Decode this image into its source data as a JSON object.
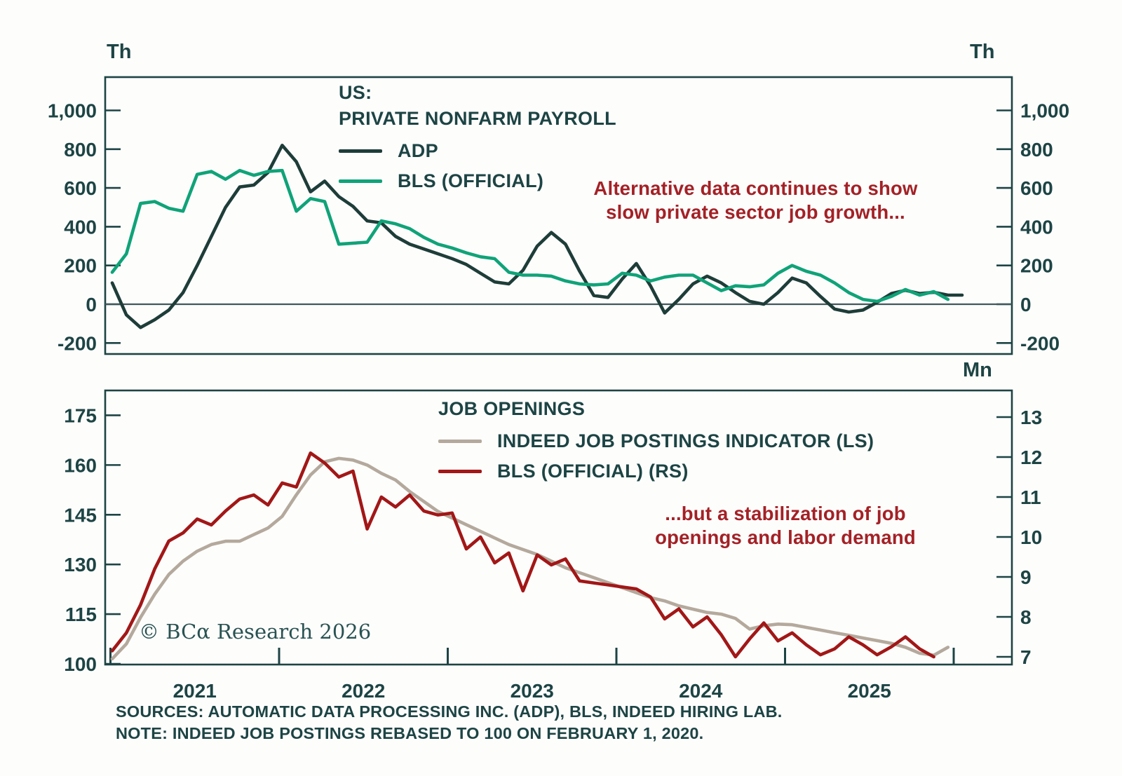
{
  "chart_data": [
    {
      "type": "line",
      "panel": "top",
      "title_lines": [
        "US:",
        "PRIVATE NONFARM PAYROLL"
      ],
      "unit_left": "Th",
      "unit_right": "Th",
      "y_tick_values": [
        1000,
        800,
        600,
        400,
        200,
        0,
        -200
      ],
      "y_tick_labels": [
        "1,000",
        "800",
        "600",
        "400",
        "200",
        "0",
        "-200"
      ],
      "zero_line": true,
      "annotation_lines": [
        "Alternative data continues to show",
        "slow private sector job growth..."
      ],
      "annotation_color": "#a32126",
      "x_range": "Jan 2021 - late 2025, monthly",
      "series": [
        {
          "name": "ADP",
          "color": "#1e3d38",
          "values": [
            110,
            -55,
            -120,
            -80,
            -30,
            60,
            200,
            350,
            500,
            605,
            615,
            680,
            820,
            735,
            580,
            635,
            555,
            505,
            430,
            420,
            350,
            310,
            285,
            260,
            235,
            205,
            160,
            115,
            105,
            175,
            300,
            370,
            310,
            170,
            45,
            35,
            130,
            210,
            95,
            -45,
            25,
            105,
            145,
            110,
            60,
            15,
            0,
            60,
            135,
            110,
            40,
            -25,
            -40,
            -30,
            10,
            55,
            72,
            55,
            62,
            47,
            47
          ]
        },
        {
          "name": "BLS (OFFICIAL)",
          "color": "#0fa378",
          "values": [
            165,
            260,
            520,
            530,
            495,
            480,
            670,
            685,
            645,
            690,
            665,
            685,
            690,
            480,
            545,
            530,
            310,
            315,
            320,
            430,
            415,
            390,
            345,
            310,
            290,
            265,
            245,
            235,
            165,
            150,
            150,
            145,
            120,
            105,
            100,
            105,
            160,
            150,
            120,
            140,
            150,
            150,
            110,
            70,
            95,
            90,
            100,
            160,
            200,
            170,
            150,
            110,
            60,
            25,
            15,
            40,
            76,
            47,
            65,
            25
          ]
        }
      ]
    },
    {
      "type": "line",
      "panel": "bottom",
      "title_lines": [
        "JOB OPENINGS"
      ],
      "unit_right": "Mn",
      "left_tick_labels": [
        "175",
        "160",
        "145",
        "130",
        "115",
        "100"
      ],
      "right_tick_labels": [
        "13",
        "12",
        "11",
        "10",
        "9",
        "8",
        "7"
      ],
      "annotation_lines": [
        "...but a stabilization of job",
        "openings and labor demand"
      ],
      "annotation_color": "#a32126",
      "series": [
        {
          "name": "INDEED JOB POSTINGS INDICATOR (LS)",
          "color": "#b4a99c",
          "axis": "left",
          "values": [
            101.5,
            106,
            114,
            121,
            127,
            131,
            134,
            136,
            137,
            137,
            139,
            141,
            144.5,
            151,
            157,
            161,
            162,
            161.5,
            160,
            157.5,
            155.5,
            152,
            149,
            146,
            144,
            142,
            140,
            138,
            136,
            134.5,
            133,
            131,
            129,
            127.5,
            126,
            124.5,
            123,
            121.5,
            120,
            119,
            117.5,
            116.5,
            115.5,
            115,
            113.7,
            110.5,
            111.5,
            112,
            111.8,
            111,
            110.2,
            109.4,
            108.6,
            107.8,
            107,
            106.2,
            105,
            103.2,
            102.6,
            105
          ]
        },
        {
          "name": "BLS (OFFICIAL) (RS)",
          "color": "#a21717",
          "axis": "right",
          "values": [
            7.15,
            7.6,
            8.3,
            9.2,
            9.9,
            10.1,
            10.45,
            10.3,
            10.65,
            10.95,
            11.05,
            10.8,
            11.35,
            11.25,
            12.1,
            11.85,
            11.5,
            11.65,
            10.2,
            11.0,
            10.75,
            11.05,
            10.65,
            10.55,
            10.6,
            9.7,
            10.0,
            9.35,
            9.6,
            8.65,
            9.55,
            9.3,
            9.45,
            8.9,
            8.85,
            8.8,
            8.75,
            8.7,
            8.5,
            7.95,
            8.2,
            7.75,
            8.0,
            7.55,
            7.0,
            7.45,
            7.85,
            7.4,
            7.6,
            7.3,
            7.05,
            7.2,
            7.5,
            7.3,
            7.05,
            7.25,
            7.5,
            7.2,
            7.0
          ]
        }
      ]
    }
  ],
  "x_axis": {
    "year_labels": [
      "2021",
      "2022",
      "2023",
      "2024",
      "2025"
    ]
  },
  "branding": "© BCα Research 2026",
  "footer": {
    "sources": "SOURCES: AUTOMATIC DATA PROCESSING INC. (ADP), BLS, INDEED HIRING LAB.",
    "note": "NOTE: INDEED JOB POSTINGS REBASED TO 100 ON FEBRUARY 1, 2020."
  },
  "colors": {
    "axis": "#1d4444",
    "background": "#fdfdfc",
    "annotation_red": "#a32126"
  }
}
